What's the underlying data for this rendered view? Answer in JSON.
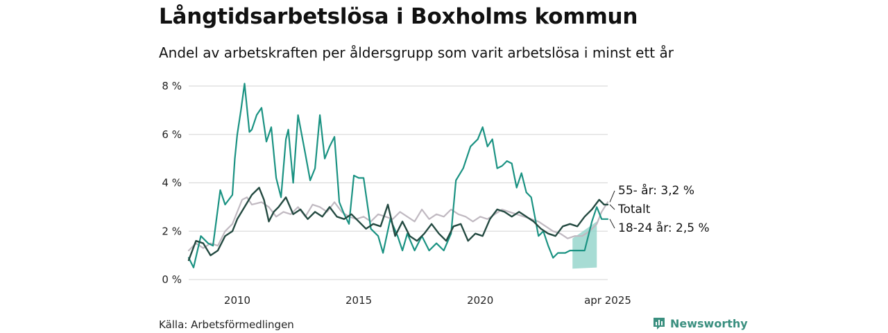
{
  "header": {
    "title": "Långtidsarbetslösa i Boxholms kommun",
    "subtitle": "Andel av arbetskraften per åldersgrupp som varit arbetslösa i minst ett år"
  },
  "footer": {
    "source": "Källa: Arbetsförmedlingen",
    "brand": "Newsworthy"
  },
  "colors": {
    "youth": "#1a9282",
    "total": "#244a41",
    "older": "#c0b9c1",
    "youth_band": "#98d6cd",
    "grid": "#dcdcdc",
    "brand": "#3a8f7f"
  },
  "chart_data": {
    "type": "line",
    "x_ticks": [
      "2010",
      "2015",
      "2020",
      "apr 2025"
    ],
    "y_ticks": [
      "0 %",
      "2 %",
      "4 %",
      "6 %",
      "8 %"
    ],
    "xlim": [
      2008.0,
      2025.25
    ],
    "ylim": [
      0,
      8
    ],
    "grid": true,
    "series": [
      {
        "name": "18-24 år",
        "label": "18-24 år: 2,5 %",
        "x": [
          2008.0,
          2008.2,
          2008.5,
          2008.8,
          2009.0,
          2009.3,
          2009.5,
          2009.8,
          2009.9,
          2010.0,
          2010.15,
          2010.3,
          2010.5,
          2010.6,
          2010.8,
          2011.0,
          2011.2,
          2011.4,
          2011.6,
          2011.8,
          2012.0,
          2012.1,
          2012.3,
          2012.5,
          2012.8,
          2013.0,
          2013.2,
          2013.4,
          2013.6,
          2013.8,
          2014.0,
          2014.2,
          2014.4,
          2014.6,
          2014.8,
          2015.0,
          2015.2,
          2015.5,
          2015.8,
          2016.0,
          2016.3,
          2016.6,
          2016.8,
          2017.0,
          2017.3,
          2017.6,
          2017.9,
          2018.2,
          2018.5,
          2018.8,
          2019.0,
          2019.3,
          2019.6,
          2019.9,
          2020.1,
          2020.3,
          2020.5,
          2020.7,
          2020.9,
          2021.1,
          2021.3,
          2021.5,
          2021.7,
          2021.9,
          2022.1,
          2022.4,
          2022.6,
          2022.8,
          2023.0,
          2023.2,
          2023.5,
          2023.7,
          2023.8,
          2024.0,
          2024.3,
          2024.6,
          2024.8,
          2025.0,
          2025.1,
          2025.25
        ],
        "y": [
          0.9,
          0.5,
          1.8,
          1.5,
          1.4,
          3.7,
          3.1,
          3.5,
          5.0,
          6.0,
          7.0,
          8.1,
          6.1,
          6.2,
          6.8,
          7.1,
          5.7,
          6.3,
          4.2,
          3.4,
          5.8,
          6.2,
          4.0,
          6.8,
          5.2,
          4.1,
          4.6,
          6.8,
          5.0,
          5.5,
          5.9,
          3.2,
          2.7,
          2.3,
          4.3,
          4.2,
          4.2,
          2.1,
          1.8,
          1.1,
          2.5,
          1.8,
          1.2,
          1.9,
          1.2,
          1.8,
          1.2,
          1.5,
          1.2,
          1.9,
          4.1,
          4.6,
          5.5,
          5.8,
          6.3,
          5.5,
          5.8,
          4.6,
          4.7,
          4.9,
          4.8,
          3.8,
          4.4,
          3.6,
          3.4,
          1.8,
          2.0,
          1.4,
          0.9,
          1.1,
          1.1,
          1.2,
          1.2,
          1.2,
          1.2,
          2.4,
          3.0,
          2.5,
          2.5,
          2.5
        ],
        "band_x": [
          2023.8,
          2024.8
        ],
        "band_low": [
          0.45,
          0.5
        ],
        "band_high": [
          1.7,
          2.4
        ]
      },
      {
        "name": "Totalt",
        "label": "Totalt",
        "x": [
          2008.0,
          2008.3,
          2008.6,
          2008.9,
          2009.2,
          2009.5,
          2009.8,
          2010.0,
          2010.3,
          2010.6,
          2010.9,
          2011.1,
          2011.3,
          2011.5,
          2011.7,
          2012.0,
          2012.3,
          2012.6,
          2012.9,
          2013.2,
          2013.5,
          2013.8,
          2014.1,
          2014.4,
          2014.7,
          2015.0,
          2015.3,
          2015.6,
          2015.9,
          2016.2,
          2016.5,
          2016.8,
          2017.1,
          2017.4,
          2017.7,
          2018.0,
          2018.3,
          2018.6,
          2018.9,
          2019.2,
          2019.5,
          2019.8,
          2020.1,
          2020.4,
          2020.7,
          2021.0,
          2021.3,
          2021.6,
          2021.9,
          2022.2,
          2022.5,
          2022.8,
          2023.1,
          2023.4,
          2023.7,
          2024.0,
          2024.3,
          2024.6,
          2024.9,
          2025.1,
          2025.25
        ],
        "y": [
          0.8,
          1.6,
          1.5,
          1.0,
          1.2,
          1.8,
          2.0,
          2.5,
          3.0,
          3.5,
          3.8,
          3.3,
          2.4,
          2.8,
          3.0,
          3.4,
          2.7,
          2.9,
          2.5,
          2.8,
          2.6,
          3.0,
          2.6,
          2.5,
          2.7,
          2.4,
          2.1,
          2.3,
          2.2,
          3.1,
          1.8,
          2.4,
          1.8,
          1.6,
          1.9,
          2.3,
          1.9,
          1.6,
          2.2,
          2.3,
          1.6,
          1.9,
          1.8,
          2.5,
          2.9,
          2.8,
          2.6,
          2.8,
          2.6,
          2.4,
          2.1,
          1.9,
          1.8,
          2.2,
          2.3,
          2.2,
          2.6,
          2.9,
          3.3,
          3.1,
          3.1
        ]
      },
      {
        "name": "55- år",
        "label": "55- år: 3,2 %",
        "x": [
          2008.0,
          2008.3,
          2008.6,
          2008.9,
          2009.2,
          2009.5,
          2009.8,
          2010.0,
          2010.2,
          2010.4,
          2010.6,
          2011.0,
          2011.3,
          2011.6,
          2011.9,
          2012.2,
          2012.5,
          2012.8,
          2013.1,
          2013.4,
          2013.7,
          2014.0,
          2014.3,
          2014.6,
          2014.9,
          2015.2,
          2015.5,
          2015.8,
          2016.1,
          2016.4,
          2016.7,
          2017.0,
          2017.3,
          2017.6,
          2017.9,
          2018.2,
          2018.5,
          2018.8,
          2019.1,
          2019.4,
          2019.7,
          2020.0,
          2020.3,
          2020.6,
          2020.9,
          2021.2,
          2021.5,
          2021.8,
          2022.1,
          2022.4,
          2022.7,
          2023.0,
          2023.3,
          2023.6,
          2023.9,
          2024.2,
          2024.5,
          2024.8,
          2025.0,
          2025.25
        ],
        "y": [
          1.2,
          1.5,
          1.3,
          1.5,
          1.4,
          2.0,
          2.3,
          2.8,
          3.3,
          3.4,
          3.1,
          3.2,
          3.0,
          2.6,
          2.8,
          2.7,
          3.0,
          2.6,
          3.1,
          3.0,
          2.8,
          3.2,
          2.8,
          2.6,
          2.5,
          2.6,
          2.4,
          2.7,
          2.6,
          2.5,
          2.8,
          2.6,
          2.4,
          2.9,
          2.5,
          2.7,
          2.6,
          2.9,
          2.7,
          2.6,
          2.4,
          2.6,
          2.5,
          2.7,
          2.9,
          2.8,
          2.7,
          2.6,
          2.5,
          2.4,
          2.2,
          2.0,
          1.9,
          1.7,
          1.8,
          1.8,
          2.0,
          2.3,
          2.8,
          3.2
        ]
      }
    ]
  }
}
